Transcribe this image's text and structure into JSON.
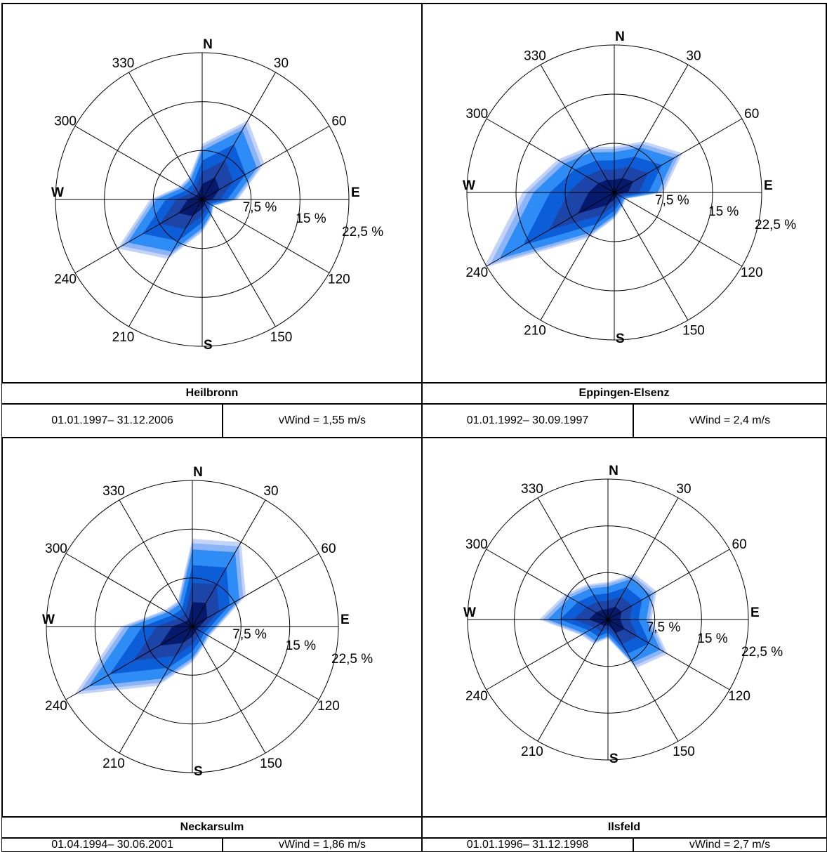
{
  "colors": {
    "bands": [
      "#c4d4f8",
      "#8cb4f8",
      "#2e8cf6",
      "#0c5ed8",
      "#1d45a8",
      "#051a6c"
    ],
    "line": "#000000"
  },
  "chart_data": [
    {
      "type": "windrose",
      "station": "Heilbronn",
      "period": "01.01.1997– 31.12.2006",
      "vwind": "vWind = 1,55 m/s",
      "ring_labels": [
        "7,5 %",
        "15 %",
        "22,5 %"
      ],
      "rmax": 22.5,
      "directions": [
        0,
        30,
        60,
        90,
        120,
        150,
        180,
        210,
        240,
        270,
        300,
        330
      ],
      "cardinals": {
        "0": "N",
        "90": "E",
        "180": "S",
        "270": "W"
      },
      "angle_labels": [
        "30",
        "60",
        "120",
        "150",
        "210",
        "240",
        "300",
        "330"
      ],
      "values": [
        8.5,
        14,
        11,
        5.5,
        2,
        3,
        5,
        10.5,
        15,
        8,
        4,
        4
      ]
    },
    {
      "type": "windrose",
      "station": "Eppingen-Elsenz",
      "period": "01.01.1992– 30.09.1997",
      "vwind": "vWind = 2,4 m/s",
      "ring_labels": [
        "7,5 %",
        "15 %",
        "22,5 %"
      ],
      "rmax": 22.5,
      "directions": [
        0,
        30,
        60,
        90,
        120,
        150,
        180,
        210,
        240,
        270,
        300,
        330
      ],
      "cardinals": {
        "0": "N",
        "90": "E",
        "180": "S",
        "270": "W"
      },
      "angle_labels": [
        "30",
        "60",
        "120",
        "150",
        "210",
        "240",
        "300",
        "330"
      ],
      "values": [
        7,
        9,
        12,
        7.5,
        2,
        2.5,
        4,
        8,
        23,
        14,
        10,
        8
      ]
    },
    {
      "type": "windrose",
      "station": "Neckarsulm",
      "period": "01.04.1994– 30.06.2001",
      "vwind": "vWind = 1,86 m/s",
      "ring_labels": [
        "7,5 %",
        "15 %",
        "22,5 %"
      ],
      "rmax": 22.5,
      "directions": [
        0,
        30,
        60,
        90,
        120,
        150,
        180,
        210,
        240,
        270,
        300,
        330
      ],
      "cardinals": {
        "0": "N",
        "90": "E",
        "180": "S",
        "270": "W"
      },
      "angle_labels": [
        "30",
        "60",
        "120",
        "150",
        "210",
        "240",
        "300",
        "330"
      ],
      "values": [
        13.5,
        15,
        9.5,
        4,
        3,
        3.5,
        5.5,
        10.5,
        21,
        11,
        5,
        4.5
      ]
    },
    {
      "type": "windrose",
      "station": "Ilsfeld",
      "period": "01.01.1996– 31.12.1998",
      "vwind": "vWind = 2,7 m/s",
      "ring_labels": [
        "7,5 %",
        "15 %",
        "22,5 %"
      ],
      "rmax": 22.5,
      "directions": [
        0,
        30,
        60,
        90,
        120,
        150,
        180,
        210,
        240,
        270,
        300,
        330
      ],
      "cardinals": {
        "0": "N",
        "90": "E",
        "180": "S",
        "270": "W"
      },
      "angle_labels": [
        "30",
        "60",
        "120",
        "150",
        "210",
        "240",
        "300",
        "330"
      ],
      "values": [
        6,
        8.5,
        9,
        7,
        11,
        9,
        3,
        4.5,
        5,
        11,
        8,
        6.5
      ]
    }
  ]
}
